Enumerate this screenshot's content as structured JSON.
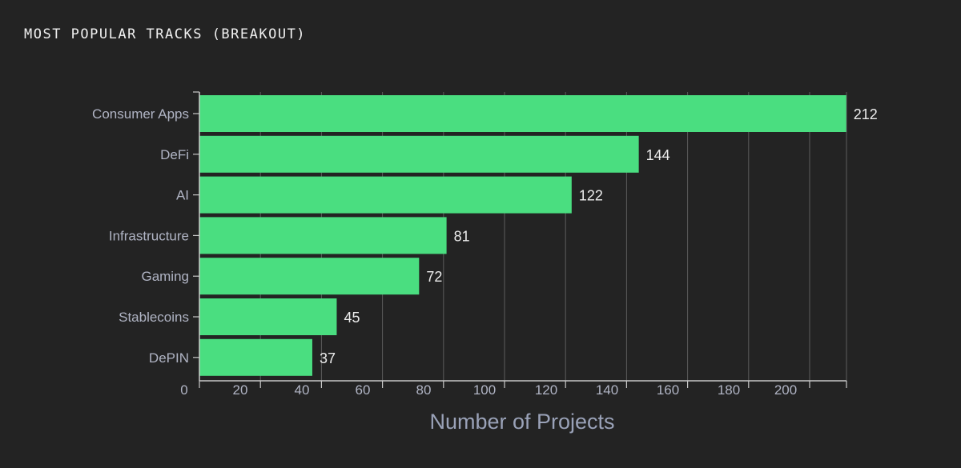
{
  "title": "MOST POPULAR TRACKS (BREAKOUT)",
  "chart_data": {
    "type": "bar",
    "orientation": "horizontal",
    "categories": [
      "Consumer Apps",
      "DeFi",
      "AI",
      "Infrastructure",
      "Gaming",
      "Stablecoins",
      "DePIN"
    ],
    "values": [
      212,
      144,
      122,
      81,
      72,
      45,
      37
    ],
    "xlabel": "Number of Projects",
    "ylabel": "",
    "xticks": [
      0,
      20,
      40,
      60,
      80,
      100,
      120,
      140,
      160,
      180,
      200
    ],
    "xlim": [
      0,
      212
    ],
    "grid": "vertical",
    "legend": "none",
    "data_labels": true
  },
  "colors": {
    "background": "#232323",
    "bar": "#4ade80",
    "grid": "#5c5c5c",
    "axis": "#c8c8c8",
    "tick_text": "#b0b4c4",
    "value_text": "#ececec",
    "xlabel_text": "#9aa2b8"
  }
}
